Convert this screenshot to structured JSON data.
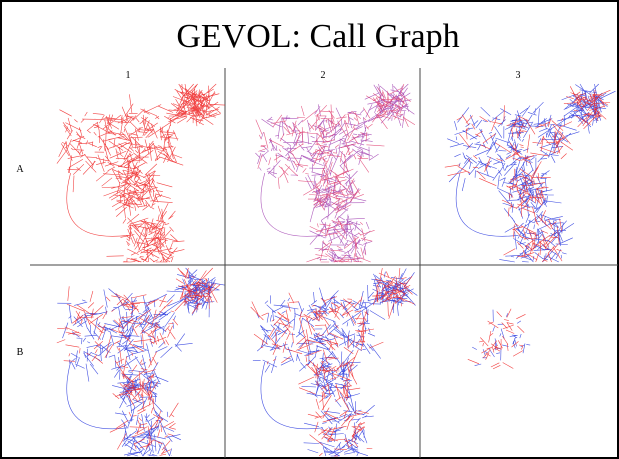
{
  "header": {
    "title": "GEVOL: Call Graph"
  },
  "grid": {
    "columns": [
      "1",
      "2",
      "3"
    ],
    "rows": [
      "A",
      "B"
    ]
  }
}
